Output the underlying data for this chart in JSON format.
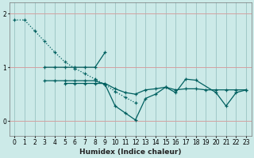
{
  "xlabel": "Humidex (Indice chaleur)",
  "background_color": "#cceae8",
  "hgrid_color": "#d4a0a0",
  "vgrid_color": "#a0c8c8",
  "line_color": "#006060",
  "line1_x": [
    0,
    1,
    2,
    3,
    4,
    5,
    6,
    7,
    8,
    9,
    10,
    11,
    12
  ],
  "line1_y": [
    1.88,
    1.88,
    1.68,
    1.48,
    1.28,
    1.1,
    0.98,
    0.88,
    0.78,
    0.68,
    0.55,
    0.44,
    0.34
  ],
  "line1_style": "dotted",
  "line2_x": [
    3,
    4,
    5,
    6,
    7,
    8,
    9
  ],
  "line2_y": [
    1.0,
    1.0,
    1.0,
    1.0,
    1.0,
    1.0,
    1.28
  ],
  "line2_style": "solid",
  "line3_x": [
    3,
    4,
    5,
    6,
    7,
    8,
    9,
    10,
    11,
    12,
    13,
    14,
    15,
    16,
    17,
    18,
    20,
    21,
    22,
    23
  ],
  "line3_y": [
    0.75,
    0.75,
    0.75,
    0.75,
    0.75,
    0.75,
    0.68,
    0.28,
    0.15,
    0.02,
    0.42,
    0.5,
    0.63,
    0.53,
    0.78,
    0.76,
    0.53,
    0.28,
    0.53,
    0.58
  ],
  "line3_style": "solid",
  "line4_x": [
    5,
    6,
    7,
    8,
    9,
    10,
    11,
    12,
    13,
    14,
    15,
    16,
    17,
    18,
    19,
    20,
    21,
    22,
    23
  ],
  "line4_y": [
    0.7,
    0.7,
    0.7,
    0.7,
    0.7,
    0.6,
    0.53,
    0.5,
    0.58,
    0.6,
    0.63,
    0.58,
    0.6,
    0.6,
    0.58,
    0.58,
    0.58,
    0.58,
    0.58
  ],
  "line4_style": "solid",
  "ylim": [
    -0.28,
    2.2
  ],
  "xlim": [
    -0.5,
    23.5
  ],
  "yticks": [
    0,
    1,
    2
  ],
  "xticks": [
    0,
    1,
    2,
    3,
    4,
    5,
    6,
    7,
    8,
    9,
    10,
    11,
    12,
    13,
    14,
    15,
    16,
    17,
    18,
    19,
    20,
    21,
    22,
    23
  ]
}
